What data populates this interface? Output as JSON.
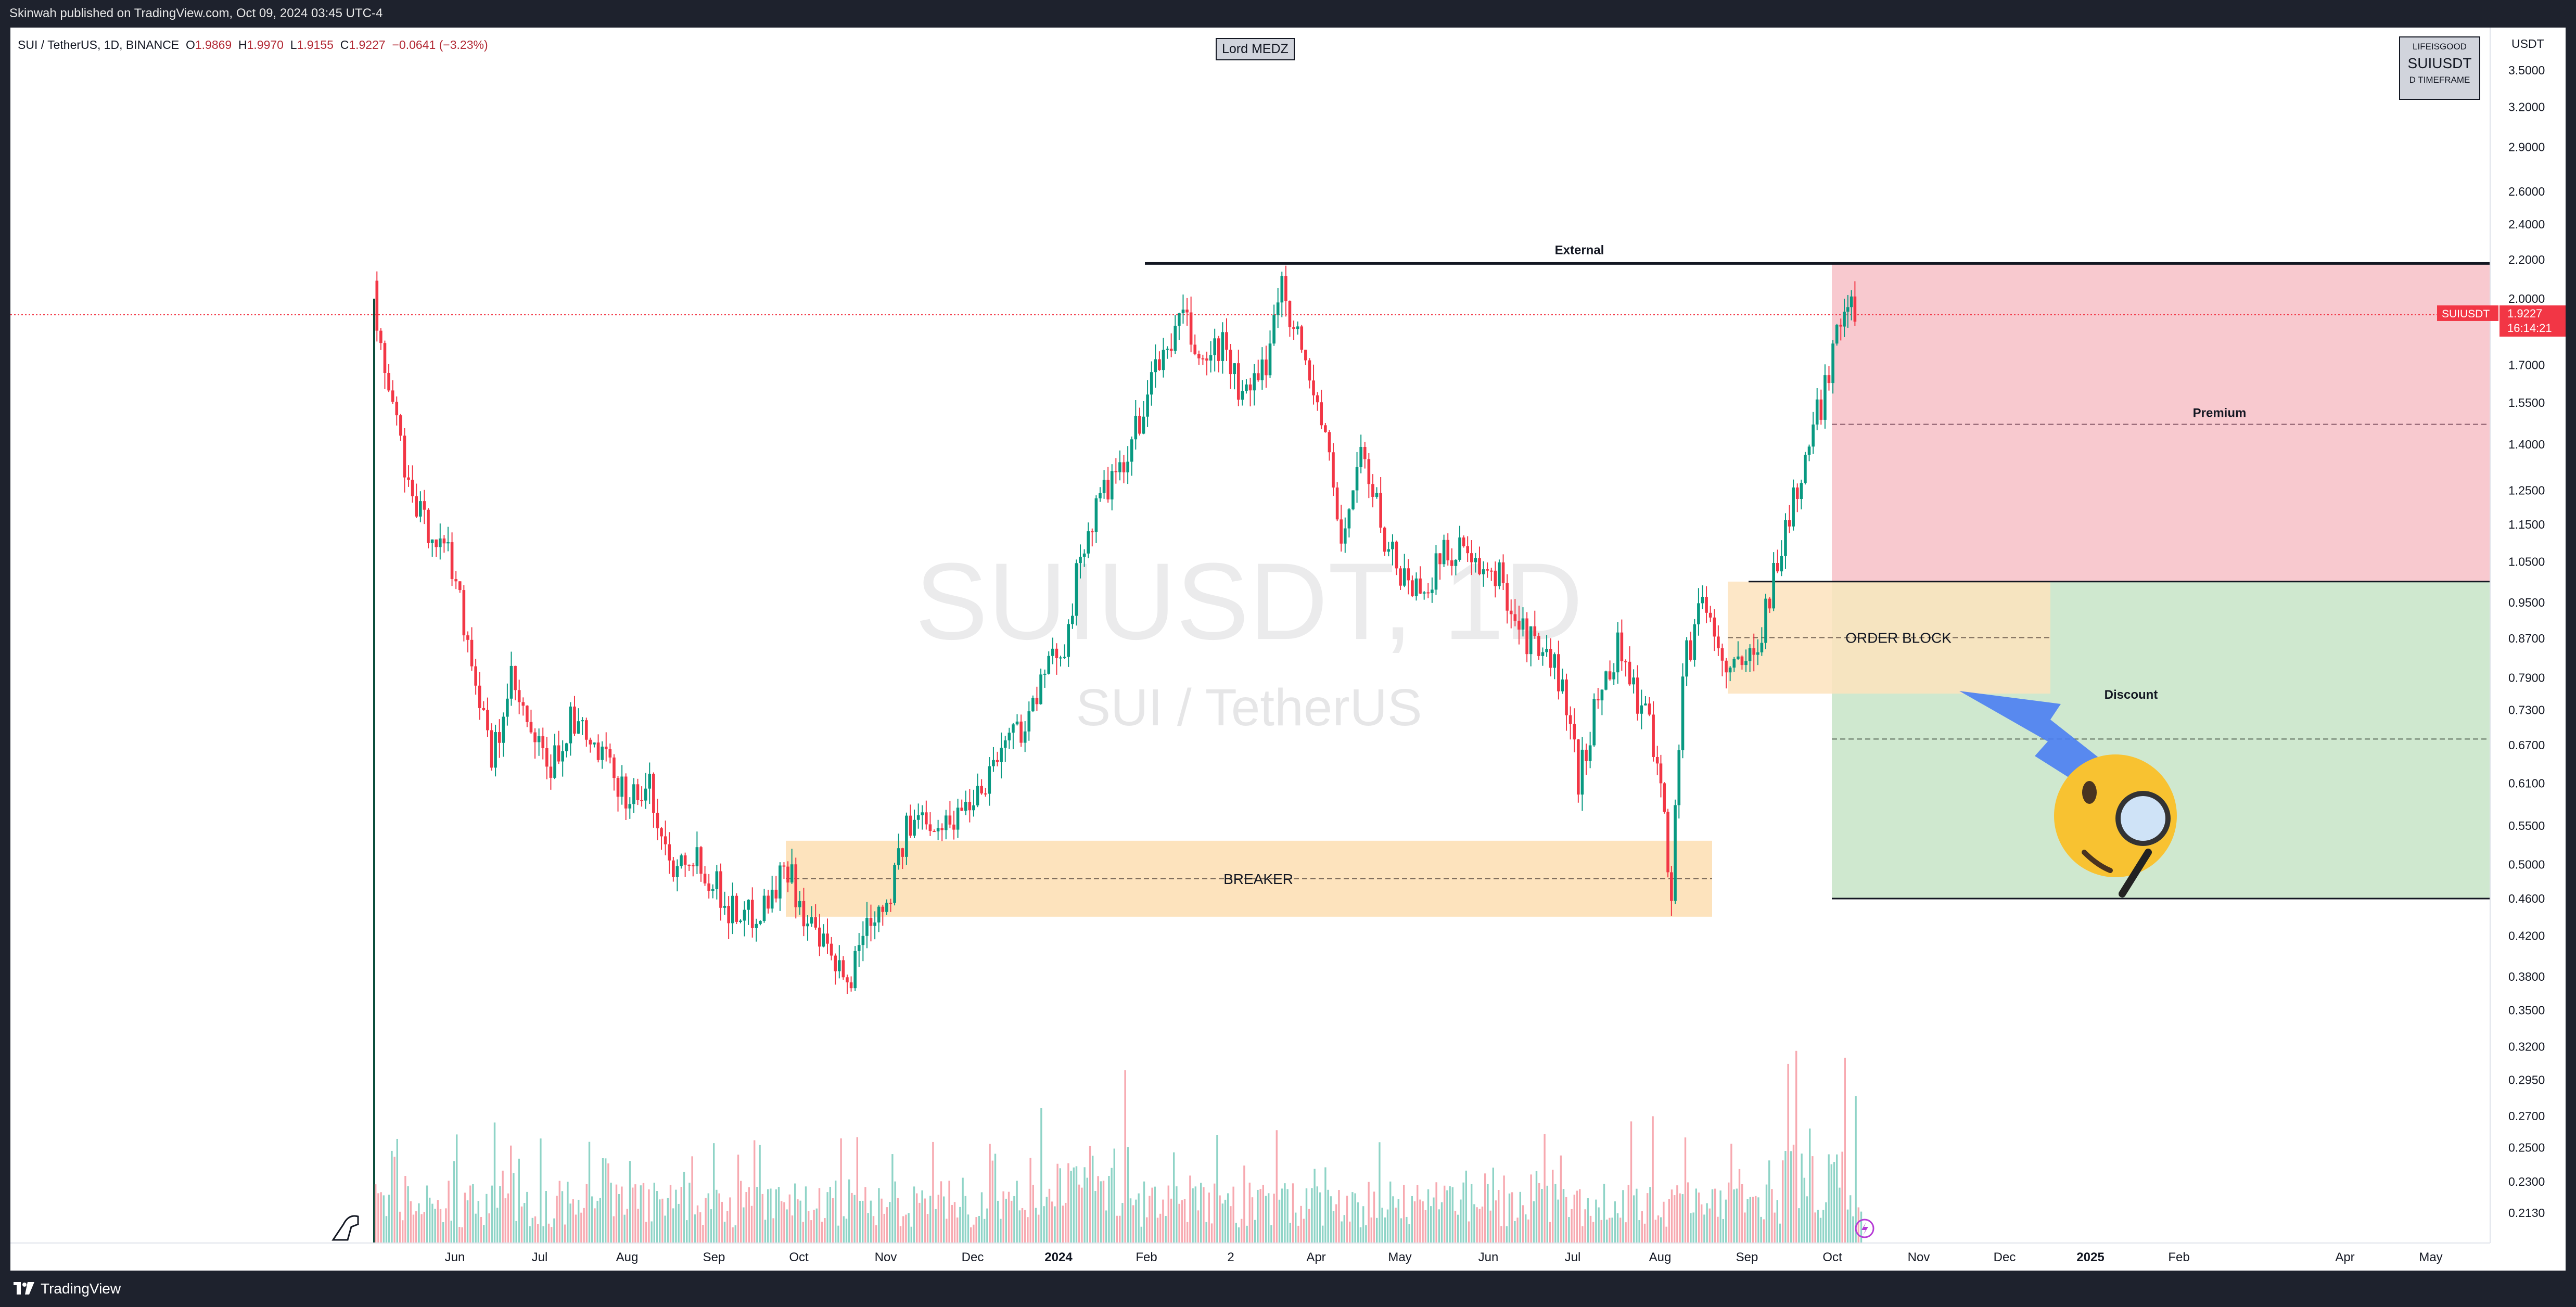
{
  "published_by": "Skinwah published on TradingView.com, Oct 09, 2024 03:45 UTC-4",
  "brand": "TradingView",
  "symbol_info": {
    "pair": "SUI / TetherUS, 1D, BINANCE",
    "open_label": "O",
    "open": "1.9869",
    "high_label": "H",
    "high": "1.9970",
    "low_label": "L",
    "low": "1.9155",
    "close_label": "C",
    "close": "1.9227",
    "change": "−0.0641 (−3.23%)"
  },
  "watermark": {
    "big": "SUIUSDT, 1D",
    "small": "SUI / TetherUS"
  },
  "author_box": "Lord MEDZ",
  "tag_box": {
    "line1": "LIFEISGOOD",
    "line2": "SUIUSDT",
    "line3": "D TIMEFRAME"
  },
  "price_axis": {
    "currency": "USDT",
    "ticks": [
      "3.5000",
      "3.2000",
      "2.9000",
      "2.6000",
      "2.4000",
      "2.2000",
      "2.0000",
      "1.7000",
      "1.5500",
      "1.4000",
      "1.2500",
      "1.1500",
      "1.0500",
      "0.9500",
      "0.8700",
      "0.7900",
      "0.7300",
      "0.6700",
      "0.6100",
      "0.5500",
      "0.5000",
      "0.4600",
      "0.4200",
      "0.3800",
      "0.3500",
      "0.3200",
      "0.2950",
      "0.2700",
      "0.2500",
      "0.2300",
      "0.2130"
    ],
    "tick_values": [
      3.5,
      3.2,
      2.9,
      2.6,
      2.4,
      2.2,
      2.0,
      1.7,
      1.55,
      1.4,
      1.25,
      1.15,
      1.05,
      0.95,
      0.87,
      0.79,
      0.73,
      0.67,
      0.61,
      0.55,
      0.5,
      0.46,
      0.42,
      0.38,
      0.35,
      0.32,
      0.295,
      0.27,
      0.25,
      0.23,
      0.213
    ],
    "current_symbol": "SUIUSDT",
    "current_price": "1.9227",
    "countdown": "16:14:21",
    "scale": "log"
  },
  "time_axis": {
    "labels": [
      "Jun",
      "Jul",
      "Aug",
      "Sep",
      "Oct",
      "Nov",
      "Dec",
      "2024",
      "Feb",
      "2",
      "Apr",
      "May",
      "Jun",
      "Jul",
      "Aug",
      "Sep",
      "Oct",
      "Nov",
      "Dec",
      "2025",
      "Feb",
      "Apr",
      "May"
    ],
    "bold": [
      "2024",
      "2025"
    ]
  },
  "annotations": {
    "external": "External",
    "premium": "Premium",
    "discount": "Discount",
    "order_block": "ORDER BLOCK",
    "breaker": "BREAKER"
  },
  "colors": {
    "up": "#089981",
    "down": "#f23645",
    "premium_zone": "#f8c9cf",
    "discount_zone": "#cfe8cf",
    "orange_zone": "#fde3bd",
    "arrow": "#4a7ef2",
    "emoji": "#f8c231",
    "price_badge": "#f23645"
  },
  "icons": [
    "dino-icon",
    "lightning-icon",
    "thinking-face-emoji",
    "magnifier-icon",
    "tradingview-logo-icon"
  ],
  "chart_data": {
    "type": "candlestick",
    "title": "SUI / TetherUS, 1D, BINANCE",
    "y_scale": "log",
    "ylim": [
      0.21,
      3.7
    ],
    "points": [
      [
        "2023-05-03",
        1.9
      ],
      [
        "2023-05-10",
        1.55
      ],
      [
        "2023-05-17",
        1.2
      ],
      [
        "2023-05-24",
        1.13
      ],
      [
        "2023-05-31",
        1.05
      ],
      [
        "2023-06-07",
        0.83
      ],
      [
        "2023-06-14",
        0.64
      ],
      [
        "2023-06-21",
        0.78
      ],
      [
        "2023-06-28",
        0.68
      ],
      [
        "2023-07-05",
        0.63
      ],
      [
        "2023-07-12",
        0.71
      ],
      [
        "2023-07-19",
        0.67
      ],
      [
        "2023-07-26",
        0.63
      ],
      [
        "2023-08-02",
        0.59
      ],
      [
        "2023-08-09",
        0.6
      ],
      [
        "2023-08-16",
        0.5
      ],
      [
        "2023-08-23",
        0.52
      ],
      [
        "2023-08-30",
        0.49
      ],
      [
        "2023-09-06",
        0.45
      ],
      [
        "2023-09-13",
        0.44
      ],
      [
        "2023-09-20",
        0.46
      ],
      [
        "2023-09-27",
        0.5
      ],
      [
        "2023-10-04",
        0.43
      ],
      [
        "2023-10-11",
        0.4
      ],
      [
        "2023-10-18",
        0.37
      ],
      [
        "2023-10-25",
        0.44
      ],
      [
        "2023-11-01",
        0.46
      ],
      [
        "2023-11-08",
        0.54
      ],
      [
        "2023-11-15",
        0.57
      ],
      [
        "2023-11-22",
        0.55
      ],
      [
        "2023-11-29",
        0.58
      ],
      [
        "2023-12-06",
        0.62
      ],
      [
        "2023-12-13",
        0.68
      ],
      [
        "2023-12-20",
        0.71
      ],
      [
        "2023-12-27",
        0.79
      ],
      [
        "2024-01-03",
        0.87
      ],
      [
        "2024-01-10",
        1.1
      ],
      [
        "2024-01-17",
        1.25
      ],
      [
        "2024-01-24",
        1.3
      ],
      [
        "2024-01-31",
        1.55
      ],
      [
        "2024-02-07",
        1.75
      ],
      [
        "2024-02-14",
        1.9
      ],
      [
        "2024-02-21",
        1.7
      ],
      [
        "2024-02-28",
        1.8
      ],
      [
        "2024-03-06",
        1.55
      ],
      [
        "2024-03-13",
        1.65
      ],
      [
        "2024-03-20",
        2.1
      ],
      [
        "2024-03-27",
        1.75
      ],
      [
        "2024-04-03",
        1.5
      ],
      [
        "2024-04-10",
        1.1
      ],
      [
        "2024-04-17",
        1.38
      ],
      [
        "2024-04-24",
        1.15
      ],
      [
        "2024-05-01",
        1.02
      ],
      [
        "2024-05-08",
        0.98
      ],
      [
        "2024-05-15",
        1.05
      ],
      [
        "2024-05-22",
        1.1
      ],
      [
        "2024-05-29",
        1.0
      ],
      [
        "2024-06-05",
        1.02
      ],
      [
        "2024-06-12",
        0.9
      ],
      [
        "2024-06-19",
        0.84
      ],
      [
        "2024-06-26",
        0.8
      ],
      [
        "2024-07-03",
        0.62
      ],
      [
        "2024-07-10",
        0.75
      ],
      [
        "2024-07-17",
        0.86
      ],
      [
        "2024-07-24",
        0.75
      ],
      [
        "2024-07-31",
        0.66
      ],
      [
        "2024-08-05",
        0.47
      ],
      [
        "2024-08-09",
        0.8
      ],
      [
        "2024-08-16",
        0.97
      ],
      [
        "2024-08-23",
        0.82
      ],
      [
        "2024-08-30",
        0.8
      ],
      [
        "2024-09-06",
        0.9
      ],
      [
        "2024-09-13",
        1.1
      ],
      [
        "2024-09-20",
        1.3
      ],
      [
        "2024-09-27",
        1.55
      ],
      [
        "2024-10-04",
        1.95
      ],
      [
        "2024-10-09",
        1.9227
      ]
    ],
    "levels": {
      "external_high": 2.18,
      "premium_mid": 1.47,
      "equilibrium": 1.0,
      "discount_mid": 0.68,
      "discount_low": 0.46,
      "order_block": [
        0.76,
        1.0
      ],
      "breaker": [
        0.44,
        0.53
      ]
    },
    "volume": "shown as bars along bottom"
  }
}
